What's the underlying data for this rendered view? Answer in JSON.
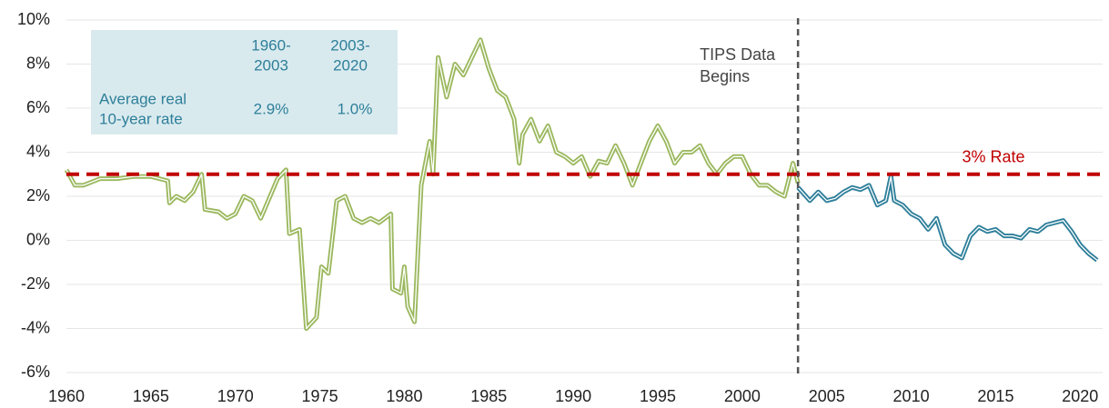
{
  "chart_data": {
    "type": "line",
    "xlim": [
      1960,
      2021.33
    ],
    "ylim": [
      -6,
      10
    ],
    "xticks": [
      1960,
      1965,
      1970,
      1975,
      1980,
      1985,
      1990,
      1995,
      2000,
      2005,
      2010,
      2015,
      2020
    ],
    "yticks": [
      {
        "value": -6,
        "label": "-6%"
      },
      {
        "value": -4,
        "label": "-4%"
      },
      {
        "value": -2,
        "label": "-2%"
      },
      {
        "value": 0,
        "label": "0%"
      },
      {
        "value": 2,
        "label": "2%"
      },
      {
        "value": 4,
        "label": "4%"
      },
      {
        "value": 6,
        "label": "6%"
      },
      {
        "value": 8,
        "label": "8%"
      },
      {
        "value": 10,
        "label": "10%"
      }
    ],
    "grid": true,
    "series": [
      {
        "color": "#9bb85e",
        "x": [
          1960,
          1960.5,
          1961,
          1962,
          1963,
          1964,
          1965,
          1966,
          1966.1,
          1966.5,
          1967,
          1967.5,
          1968,
          1968.2,
          1969,
          1969.5,
          1970,
          1970.5,
          1971,
          1971.5,
          1972,
          1972.5,
          1973,
          1973.2,
          1973.8,
          1974.2,
          1974.8,
          1975.1,
          1975.5,
          1976,
          1976.5,
          1977,
          1977.5,
          1978,
          1978.5,
          1979.2,
          1979.3,
          1979.8,
          1980,
          1980.2,
          1980.6,
          1981,
          1981.5,
          1981.7,
          1982,
          1982.5,
          1983,
          1983.5,
          1984,
          1984.5,
          1985,
          1985.5,
          1986,
          1986.5,
          1986.8,
          1987,
          1987.5,
          1988,
          1988.5,
          1989,
          1989.5,
          1990,
          1990.5,
          1991,
          1991.5,
          1992,
          1992.5,
          1993,
          1993.5,
          1994,
          1994.5,
          1995,
          1995.5,
          1996,
          1996.5,
          1997,
          1997.5,
          1998,
          1998.5,
          1999,
          1999.5,
          2000,
          2000.5,
          2001,
          2001.5,
          2002,
          2002.5,
          2003,
          2003.3
        ],
        "values": [
          3.2,
          2.5,
          2.5,
          2.8,
          2.8,
          2.9,
          2.9,
          2.7,
          1.7,
          2.0,
          1.8,
          2.2,
          3.0,
          1.4,
          1.3,
          1.0,
          1.2,
          2.0,
          1.8,
          1.0,
          1.9,
          2.8,
          3.2,
          0.3,
          0.5,
          -4.0,
          -3.5,
          -1.2,
          -1.5,
          1.8,
          2.0,
          1.0,
          0.8,
          1.0,
          0.8,
          1.2,
          -2.2,
          -2.4,
          -1.2,
          -3.0,
          -3.7,
          2.5,
          4.5,
          3.0,
          8.3,
          6.5,
          8.0,
          7.5,
          8.3,
          9.1,
          7.8,
          6.8,
          6.5,
          5.5,
          3.5,
          4.8,
          5.5,
          4.5,
          5.2,
          4.0,
          3.8,
          3.5,
          3.8,
          2.9,
          3.6,
          3.5,
          4.3,
          3.5,
          2.5,
          3.5,
          4.5,
          5.2,
          4.5,
          3.5,
          4.0,
          4.0,
          4.3,
          3.5,
          3.0,
          3.5,
          3.8,
          3.8,
          3.0,
          2.5,
          2.5,
          2.2,
          2.0,
          3.5,
          2.6
        ]
      },
      {
        "color": "#2e7f9a",
        "x": [
          2003.3,
          2004,
          2004.5,
          2005,
          2005.5,
          2006,
          2006.5,
          2007,
          2007.5,
          2008,
          2008.5,
          2008.8,
          2009,
          2009.5,
          2010,
          2010.5,
          2011,
          2011.5,
          2012,
          2012.5,
          2013,
          2013.5,
          2014,
          2014.5,
          2015,
          2015.5,
          2016,
          2016.5,
          2017,
          2017.5,
          2018,
          2018.5,
          2019,
          2019.5,
          2020,
          2020.5,
          2021
        ],
        "values": [
          2.4,
          1.8,
          2.2,
          1.8,
          1.9,
          2.2,
          2.4,
          2.3,
          2.5,
          1.6,
          1.8,
          2.9,
          1.8,
          1.6,
          1.2,
          1.0,
          0.5,
          1.0,
          -0.2,
          -0.6,
          -0.8,
          0.2,
          0.6,
          0.4,
          0.5,
          0.2,
          0.2,
          0.1,
          0.5,
          0.4,
          0.7,
          0.8,
          0.9,
          0.4,
          -0.2,
          -0.6,
          -0.9
        ]
      }
    ],
    "hline": {
      "y": 3,
      "label": "3% Rate",
      "color": "#c00000"
    },
    "vline": {
      "x": 2003.3,
      "label": [
        "TIPS Data",
        "Begins"
      ],
      "color": "#555555"
    },
    "table": {
      "columns": [
        [
          "1960-",
          "2003"
        ],
        [
          "2003-",
          "2020"
        ]
      ],
      "row_label": [
        "Average real",
        "10-year rate"
      ],
      "values": [
        "2.9%",
        "1.0%"
      ]
    }
  }
}
